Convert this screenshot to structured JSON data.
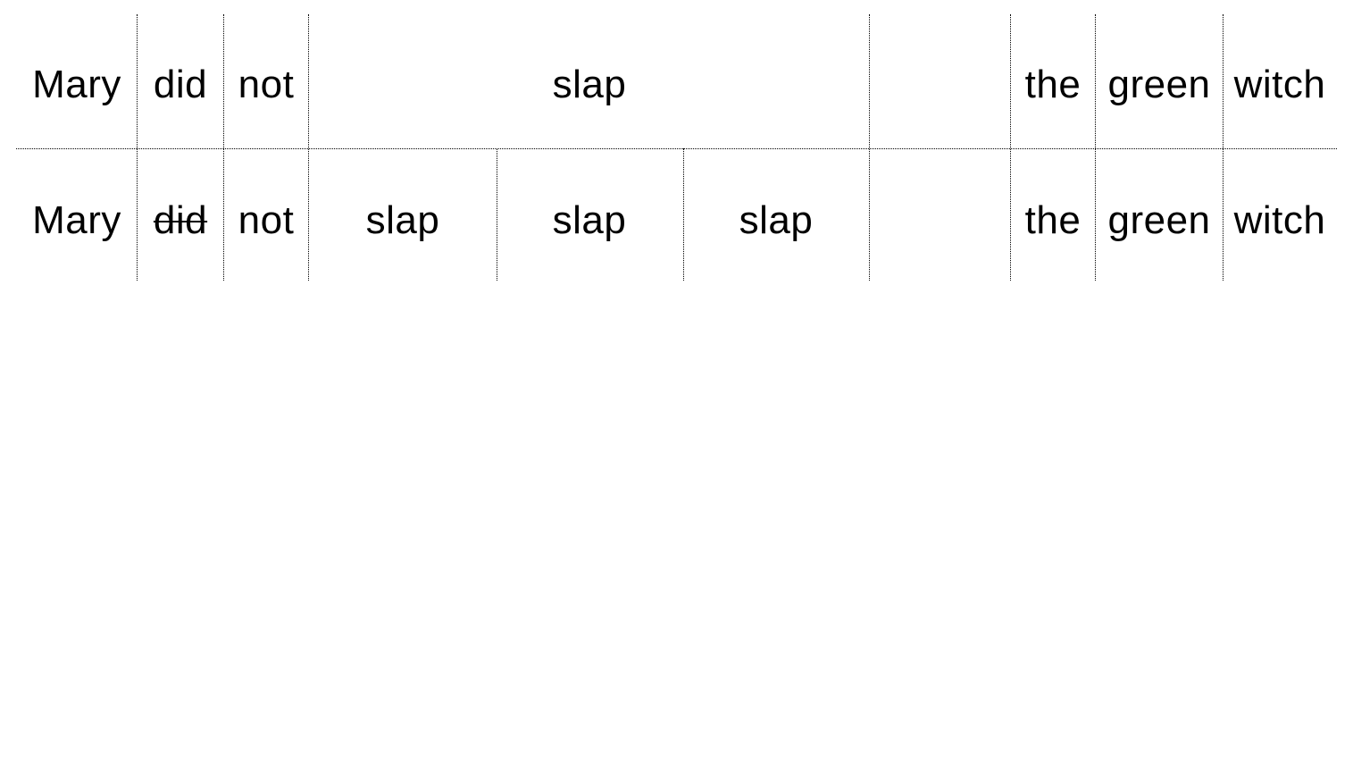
{
  "diagram": {
    "rows": [
      {
        "id": "source",
        "cells": [
          {
            "text": "Mary",
            "struck": false
          },
          {
            "text": "did",
            "struck": false
          },
          {
            "text": "not",
            "struck": false
          },
          {
            "text": "slap",
            "struck": false
          },
          {
            "text": "",
            "struck": false
          },
          {
            "text": "the",
            "struck": false
          },
          {
            "text": "green",
            "struck": false
          },
          {
            "text": "witch",
            "struck": false
          }
        ]
      },
      {
        "id": "expanded",
        "cells": [
          {
            "text": "Mary",
            "struck": false
          },
          {
            "text": "did",
            "struck": true
          },
          {
            "text": "not",
            "struck": false
          },
          {
            "text": "slap",
            "struck": false
          },
          {
            "text": "slap",
            "struck": false
          },
          {
            "text": "slap",
            "struck": false
          },
          {
            "text": "",
            "struck": false
          },
          {
            "text": "the",
            "struck": false
          },
          {
            "text": "green",
            "struck": false
          },
          {
            "text": "witch",
            "struck": false
          }
        ]
      }
    ],
    "line_color": "#000000",
    "line_style": "dotted"
  }
}
